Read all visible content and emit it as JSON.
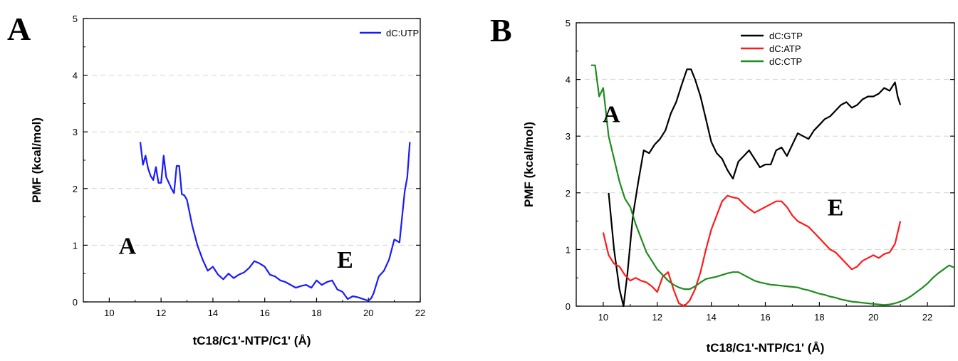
{
  "chart_data": [
    {
      "panel": "A",
      "type": "line",
      "title": "",
      "xlabel": "tC18/C1'-NTP/C1' (Å)",
      "ylabel": "PMF (kcal/mol)",
      "xlim": [
        9,
        22
      ],
      "ylim": [
        0,
        5
      ],
      "xticks": [
        10,
        12,
        14,
        16,
        18,
        20,
        22
      ],
      "yticks": [
        0,
        1,
        2,
        3,
        4,
        5
      ],
      "grid": "horizontal dashed",
      "legend": "top-right",
      "annotations": [
        {
          "text": "A",
          "x": 10.7,
          "y": 0.85
        },
        {
          "text": "E",
          "x": 19.1,
          "y": 0.6
        }
      ],
      "series": [
        {
          "name": "dC:UTP",
          "color": "#1a1aff",
          "x": [
            11.2,
            11.3,
            11.4,
            11.5,
            11.6,
            11.7,
            11.8,
            11.9,
            12.0,
            12.1,
            12.2,
            12.3,
            12.4,
            12.5,
            12.6,
            12.7,
            12.8,
            12.9,
            13.0,
            13.2,
            13.4,
            13.6,
            13.8,
            14.0,
            14.2,
            14.4,
            14.6,
            14.8,
            15.0,
            15.2,
            15.4,
            15.6,
            15.8,
            16.0,
            16.2,
            16.4,
            16.6,
            16.8,
            17.0,
            17.2,
            17.4,
            17.6,
            17.8,
            18.0,
            18.2,
            18.4,
            18.6,
            18.8,
            19.0,
            19.2,
            19.4,
            19.6,
            19.8,
            20.0,
            20.1,
            20.2,
            20.4,
            20.6,
            20.8,
            21.0,
            21.2,
            21.4,
            21.5,
            21.6
          ],
          "y": [
            2.82,
            2.42,
            2.58,
            2.35,
            2.22,
            2.15,
            2.38,
            2.1,
            2.1,
            2.58,
            2.2,
            2.1,
            2.0,
            1.92,
            2.4,
            2.4,
            1.9,
            1.88,
            1.8,
            1.35,
            1.0,
            0.75,
            0.55,
            0.62,
            0.48,
            0.4,
            0.5,
            0.42,
            0.48,
            0.52,
            0.6,
            0.72,
            0.68,
            0.62,
            0.48,
            0.45,
            0.38,
            0.35,
            0.3,
            0.25,
            0.28,
            0.3,
            0.25,
            0.38,
            0.3,
            0.35,
            0.38,
            0.22,
            0.18,
            0.05,
            0.1,
            0.08,
            0.05,
            0.02,
            0.06,
            0.15,
            0.45,
            0.55,
            0.75,
            1.1,
            1.05,
            1.95,
            2.2,
            2.82
          ]
        }
      ]
    },
    {
      "panel": "B",
      "type": "line",
      "title": "",
      "xlabel": "tC18/C1'-NTP/C1' (Å)",
      "ylabel": "PMF (kcal/mol)",
      "xlim": [
        9,
        23
      ],
      "ylim": [
        0,
        5
      ],
      "xticks": [
        10,
        12,
        14,
        16,
        18,
        20,
        22
      ],
      "yticks": [
        0,
        1,
        2,
        3,
        4,
        5
      ],
      "grid": "horizontal dashed",
      "legend": "top-center",
      "annotations": [
        {
          "text": "A",
          "x": 10.3,
          "y": 3.25
        },
        {
          "text": "E",
          "x": 18.6,
          "y": 1.6
        }
      ],
      "series": [
        {
          "name": "dC:GTP",
          "color": "#000000",
          "x": [
            10.2,
            10.4,
            10.6,
            10.75,
            10.9,
            11.1,
            11.3,
            11.5,
            11.7,
            11.9,
            12.1,
            12.3,
            12.5,
            12.7,
            12.9,
            13.1,
            13.25,
            13.4,
            13.6,
            13.8,
            14.0,
            14.2,
            14.4,
            14.6,
            14.8,
            15.0,
            15.2,
            15.4,
            15.6,
            15.8,
            16.0,
            16.2,
            16.4,
            16.6,
            16.8,
            17.0,
            17.2,
            17.4,
            17.6,
            17.8,
            18.0,
            18.2,
            18.4,
            18.6,
            18.8,
            19.0,
            19.2,
            19.4,
            19.6,
            19.8,
            20.0,
            20.2,
            20.4,
            20.6,
            20.8,
            20.9,
            21.0
          ],
          "y": [
            2.0,
            1.0,
            0.3,
            0.0,
            0.6,
            1.6,
            2.2,
            2.75,
            2.7,
            2.85,
            2.95,
            3.1,
            3.4,
            3.6,
            3.9,
            4.18,
            4.18,
            4.0,
            3.7,
            3.3,
            2.9,
            2.7,
            2.6,
            2.4,
            2.25,
            2.55,
            2.65,
            2.75,
            2.6,
            2.45,
            2.5,
            2.5,
            2.75,
            2.8,
            2.65,
            2.85,
            3.05,
            3.0,
            2.95,
            3.1,
            3.2,
            3.3,
            3.35,
            3.45,
            3.55,
            3.6,
            3.5,
            3.55,
            3.65,
            3.7,
            3.7,
            3.75,
            3.85,
            3.8,
            3.95,
            3.7,
            3.55
          ]
        },
        {
          "name": "dC:ATP",
          "color": "#ff1a1a",
          "x": [
            10.0,
            10.2,
            10.4,
            10.6,
            10.8,
            11.0,
            11.2,
            11.4,
            11.6,
            11.8,
            12.0,
            12.2,
            12.4,
            12.6,
            12.8,
            13.0,
            13.2,
            13.4,
            13.6,
            13.8,
            14.0,
            14.2,
            14.4,
            14.6,
            14.8,
            15.0,
            15.2,
            15.4,
            15.6,
            15.8,
            16.0,
            16.2,
            16.4,
            16.6,
            16.8,
            17.0,
            17.2,
            17.4,
            17.6,
            17.8,
            18.0,
            18.2,
            18.4,
            18.6,
            18.8,
            19.0,
            19.2,
            19.4,
            19.6,
            19.8,
            20.0,
            20.2,
            20.4,
            20.6,
            20.8,
            21.0
          ],
          "y": [
            1.3,
            0.9,
            0.75,
            0.7,
            0.55,
            0.45,
            0.5,
            0.45,
            0.42,
            0.35,
            0.25,
            0.52,
            0.6,
            0.3,
            0.05,
            0.0,
            0.1,
            0.3,
            0.6,
            1.0,
            1.35,
            1.6,
            1.85,
            1.95,
            1.92,
            1.9,
            1.8,
            1.72,
            1.65,
            1.7,
            1.75,
            1.8,
            1.85,
            1.85,
            1.75,
            1.6,
            1.5,
            1.45,
            1.4,
            1.3,
            1.2,
            1.1,
            1.0,
            0.95,
            0.85,
            0.75,
            0.65,
            0.7,
            0.8,
            0.85,
            0.9,
            0.85,
            0.92,
            0.95,
            1.1,
            1.5
          ]
        },
        {
          "name": "dC:CTP",
          "color": "#1e8c1e",
          "x": [
            9.55,
            9.7,
            9.85,
            10.0,
            10.2,
            10.4,
            10.6,
            10.8,
            11.0,
            11.2,
            11.4,
            11.6,
            11.8,
            12.0,
            12.2,
            12.4,
            12.6,
            12.8,
            13.0,
            13.2,
            13.4,
            13.6,
            13.8,
            14.0,
            14.2,
            14.4,
            14.6,
            14.8,
            15.0,
            15.2,
            15.4,
            15.6,
            15.8,
            16.0,
            16.2,
            16.4,
            16.6,
            16.8,
            17.0,
            17.2,
            17.4,
            17.6,
            17.8,
            18.0,
            18.2,
            18.4,
            18.6,
            18.8,
            19.0,
            19.2,
            19.4,
            19.6,
            19.8,
            20.0,
            20.2,
            20.4,
            20.6,
            20.8,
            21.0,
            21.2,
            21.4,
            21.6,
            21.8,
            22.0,
            22.2,
            22.4,
            22.6,
            22.8,
            23.0
          ],
          "y": [
            4.25,
            4.25,
            3.7,
            3.85,
            3.0,
            2.6,
            2.2,
            1.9,
            1.75,
            1.45,
            1.2,
            0.95,
            0.8,
            0.65,
            0.55,
            0.45,
            0.38,
            0.33,
            0.3,
            0.3,
            0.35,
            0.42,
            0.48,
            0.5,
            0.52,
            0.55,
            0.58,
            0.6,
            0.6,
            0.55,
            0.5,
            0.45,
            0.42,
            0.4,
            0.38,
            0.37,
            0.36,
            0.35,
            0.34,
            0.33,
            0.3,
            0.28,
            0.25,
            0.22,
            0.2,
            0.17,
            0.15,
            0.12,
            0.1,
            0.08,
            0.07,
            0.06,
            0.05,
            0.04,
            0.03,
            0.02,
            0.03,
            0.05,
            0.08,
            0.12,
            0.18,
            0.25,
            0.32,
            0.4,
            0.5,
            0.58,
            0.65,
            0.72,
            0.68
          ]
        }
      ]
    }
  ]
}
